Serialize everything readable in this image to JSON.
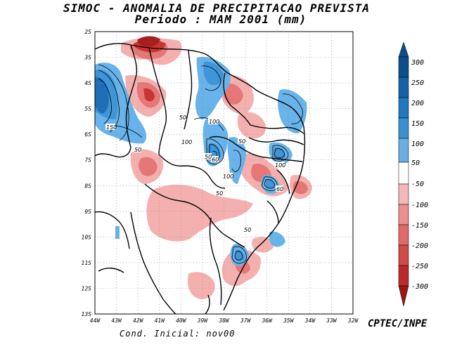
{
  "title": {
    "line1": "SIMOC -  ANOMALIA DE PRECIPITACAO PREVISTA",
    "line2": "Periodo : MAM 2001 (mm)"
  },
  "footer": {
    "credit": "CPTEC/INPE",
    "condition": "Cond. Inicial: nov00"
  },
  "axes": {
    "lat_labels": [
      "2S",
      "3S",
      "4S",
      "5S",
      "6S",
      "7S",
      "8S",
      "9S",
      "10S",
      "11S",
      "12S",
      "13S"
    ],
    "lon_labels": [
      "44W",
      "43W",
      "42W",
      "41W",
      "40W",
      "39W",
      "38W",
      "37W",
      "36W",
      "35W",
      "34W",
      "33W",
      "32W"
    ]
  },
  "colorbar": {
    "labels": [
      "300",
      "250",
      "200",
      "150",
      "100",
      "50",
      "-50",
      "-100",
      "-150",
      "-200",
      "-250",
      "-300"
    ],
    "colors": [
      "#0a4f8a",
      "#1760a8",
      "#2277bd",
      "#3a90d0",
      "#6aaee2",
      "#ffffff",
      "#f4b8b8",
      "#ec8f8f",
      "#e06a6a",
      "#d14a4a",
      "#bb2a2a",
      "#9e1414"
    ]
  },
  "contour_labels": [
    "150",
    "50",
    "50",
    "100",
    "100",
    "50",
    "100",
    "60",
    "50",
    "50",
    "100",
    "60",
    "50"
  ],
  "colors": {
    "red_light": "#f4b0ae",
    "red_mid": "#e57777",
    "red_dark": "#c93333",
    "red_darkest": "#a61e1e",
    "blue_light": "#67b3ea",
    "blue_mid": "#3e95d8",
    "blue_dark": "#1e6fb8"
  }
}
